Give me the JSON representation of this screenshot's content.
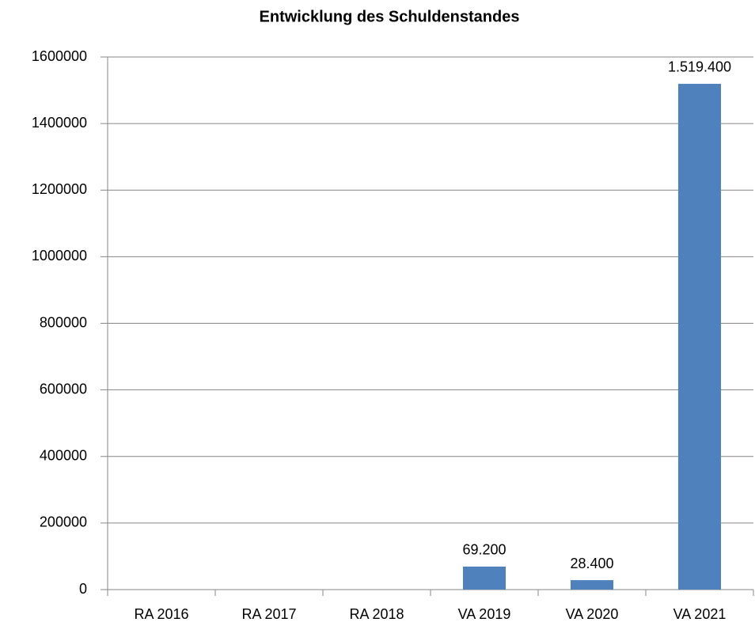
{
  "chart_data": {
    "type": "bar",
    "title": "Entwicklung des Schuldenstandes",
    "categories": [
      "RA 2016",
      "RA 2017",
      "RA 2018",
      "VA 2019",
      "VA 2020",
      "VA 2021"
    ],
    "values": [
      null,
      null,
      null,
      69200,
      28400,
      1519400
    ],
    "value_labels": [
      null,
      null,
      null,
      "69.200",
      "28.400",
      "1.519.400"
    ],
    "color": "#4f81bd",
    "ylim": [
      0,
      1600000
    ],
    "yticks": [
      0,
      200000,
      400000,
      600000,
      800000,
      1000000,
      1200000,
      1400000,
      1600000
    ],
    "grid": true
  }
}
